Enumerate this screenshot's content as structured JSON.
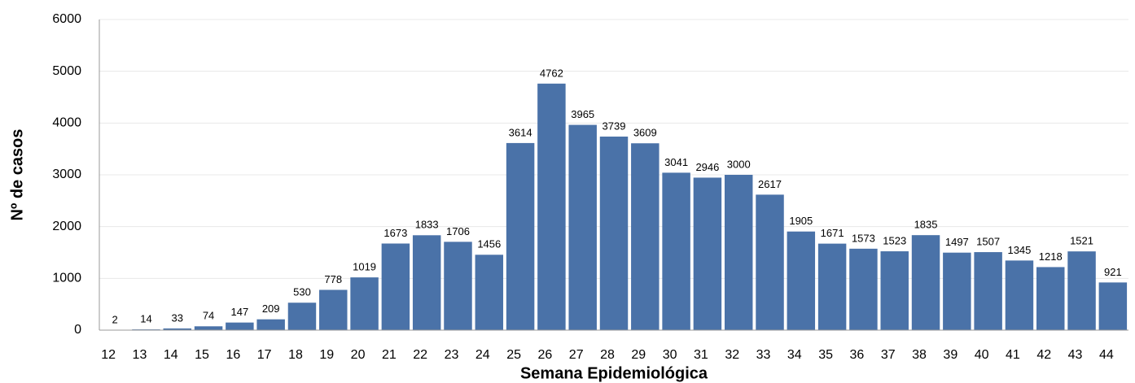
{
  "chart_data": {
    "type": "bar",
    "x_label": "Semana Epidemiológica",
    "y_label": "Nº de casos",
    "categories": [
      "12",
      "13",
      "14",
      "15",
      "16",
      "17",
      "18",
      "19",
      "20",
      "21",
      "22",
      "23",
      "24",
      "25",
      "26",
      "27",
      "28",
      "29",
      "30",
      "31",
      "32",
      "33",
      "34",
      "35",
      "36",
      "37",
      "38",
      "39",
      "40",
      "41",
      "42",
      "43",
      "44"
    ],
    "values": [
      2,
      14,
      33,
      74,
      147,
      209,
      530,
      778,
      1019,
      1673,
      1833,
      1706,
      1456,
      3614,
      4762,
      3965,
      3739,
      3609,
      3041,
      2946,
      3000,
      2617,
      1905,
      1671,
      1573,
      1523,
      1835,
      1497,
      1507,
      1345,
      1218,
      1521,
      921
    ],
    "color": "#4a72a8",
    "ylim": [
      0,
      6000
    ],
    "yticks": [
      0,
      1000,
      2000,
      3000,
      4000,
      5000,
      6000
    ],
    "grid": true
  }
}
